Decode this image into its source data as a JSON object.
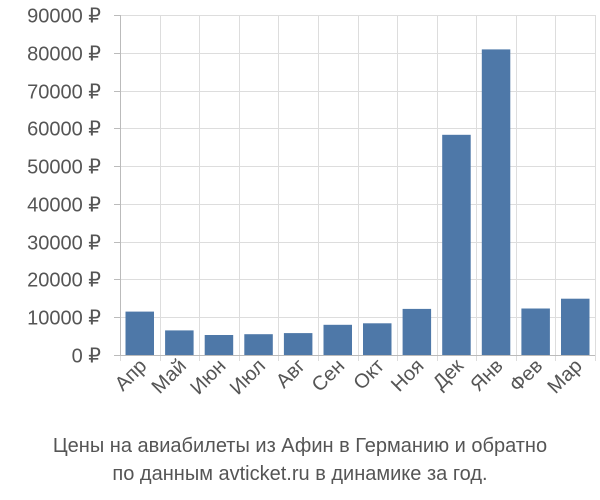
{
  "chart_data": {
    "type": "bar",
    "categories": [
      "Апр",
      "Май",
      "Июн",
      "Июл",
      "Авг",
      "Сен",
      "Окт",
      "Ноя",
      "Дек",
      "Янв",
      "Фев",
      "Мар"
    ],
    "values": [
      11500,
      6500,
      5300,
      5500,
      5800,
      8000,
      8400,
      12200,
      58300,
      80900,
      12300,
      14900
    ],
    "ylim": [
      0,
      90000
    ],
    "yticks": [
      0,
      10000,
      20000,
      30000,
      40000,
      50000,
      60000,
      70000,
      80000,
      90000
    ],
    "ytick_labels": [
      "0 ₽",
      "10000 ₽",
      "20000 ₽",
      "30000 ₽",
      "40000 ₽",
      "50000 ₽",
      "60000 ₽",
      "70000 ₽",
      "80000 ₽",
      "90000 ₽"
    ],
    "grid": true,
    "bar_color": "#4e78a8",
    "caption_lines": [
      "Цены на авиабилеты из Афин в Германию и обратно",
      "по данным avticket.ru в динамике за год."
    ]
  }
}
